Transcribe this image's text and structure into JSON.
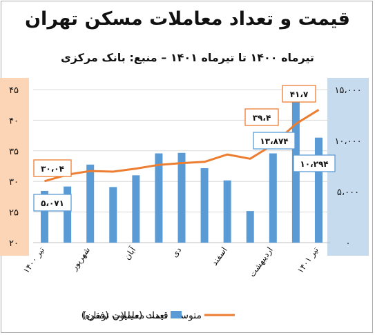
{
  "chart_data": {
    "type": "bar+line",
    "title": "قیمت و تعداد معاملات مسکن تهران",
    "subtitle": "تیرماه ۱۴۰۰ تا تیرماه ۱۴۰۱ – منبع: بانک مرکزی",
    "category_labels": [
      "تیر ۱۴۰۰",
      "شهریور",
      "آبان",
      "دی",
      "اسفند",
      "اردیبهشت",
      "تیر ۱۴۰۱"
    ],
    "n_categories": 13,
    "series": [
      {
        "name": "تعداد معاملات (فقره)",
        "type": "bar",
        "axis": "right",
        "color": "#5b9bd5",
        "values": [
          5071,
          5500,
          7650,
          5450,
          6600,
          8750,
          8800,
          7300,
          6100,
          3100,
          8750,
          13874,
          10294
        ]
      },
      {
        "name": "متوسط قیمت (میلیون تومان)",
        "type": "line",
        "axis": "left",
        "color": "#ed7d31",
        "values": [
          30.04,
          31.1,
          31.7,
          31.6,
          32.1,
          32.7,
          33.0,
          33.2,
          34.4,
          33.7,
          36.0,
          39.4,
          41.7
        ]
      }
    ],
    "left_axis": {
      "min": 20,
      "max": 45,
      "tick_labels": [
        "۲۰",
        "۲۵",
        "۳۰",
        "۳۵",
        "۴۰",
        "۴۵"
      ],
      "tick_values": [
        20,
        25,
        30,
        35,
        40,
        45
      ],
      "bg": "#fbd5b5"
    },
    "right_axis": {
      "min": 0,
      "max": 15000,
      "tick_labels": [
        "۰",
        "۵،۰۰۰",
        "۱۰،۰۰۰",
        "۱۵،۰۰۰"
      ],
      "tick_values": [
        0,
        5000,
        10000,
        15000
      ],
      "bg": "#c6dcee"
    },
    "data_labels": {
      "bar": [
        {
          "index": 0,
          "text": "۵،۰۷۱"
        },
        {
          "index": 11,
          "text": "۱۳،۸۷۴"
        },
        {
          "index": 12,
          "text": "۱۰،۲۹۴"
        }
      ],
      "line": [
        {
          "index": 0,
          "text": "۳۰،۰۴"
        },
        {
          "index": 11,
          "text": "۳۹،۴"
        },
        {
          "index": 12,
          "text": "۴۱،۷"
        }
      ]
    },
    "legend_position": "bottom",
    "grid": true
  }
}
